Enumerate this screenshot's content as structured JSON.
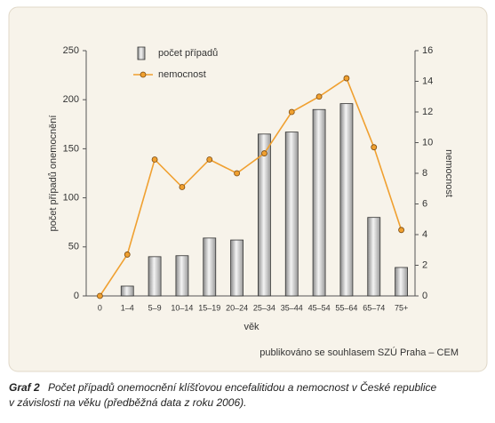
{
  "chart_data": {
    "type": "bar-line",
    "categories": [
      "0",
      "1–4",
      "5–9",
      "10–14",
      "15–19",
      "20–24",
      "25–34",
      "35–44",
      "45–54",
      "55–64",
      "65–74",
      "75+"
    ],
    "series": [
      {
        "name": "počet případů",
        "type": "bar",
        "color": "#b8b8b8",
        "values": [
          0,
          10,
          40,
          41,
          59,
          57,
          165,
          167,
          190,
          196,
          80,
          29
        ]
      },
      {
        "name": "nemocnost",
        "type": "line",
        "axis": "y2",
        "color": "#f0a030",
        "values": [
          0,
          2.7,
          8.9,
          7.1,
          8.9,
          8.0,
          9.3,
          12.0,
          13.0,
          14.2,
          9.7,
          4.3
        ]
      }
    ],
    "ylim": [
      0,
      250
    ],
    "yticks": [
      0,
      50,
      100,
      150,
      200,
      250
    ],
    "y2lim": [
      0,
      16
    ],
    "y2ticks": [
      0,
      2,
      4,
      6,
      8,
      10,
      12,
      14,
      16
    ],
    "ylabel": "počet případů onemocnění",
    "y2label": "nemocnost",
    "xlabel": "věk",
    "note": "publikováno se souhlasem SZÚ Praha – CEM",
    "caption": {
      "label": "Graf 2",
      "lines": [
        "Počet případů onemocnění klíšťovou encefalitidou a nemocnost v České republice",
        "v závislosti na věku (předběžná data z roku 2006)."
      ]
    }
  }
}
